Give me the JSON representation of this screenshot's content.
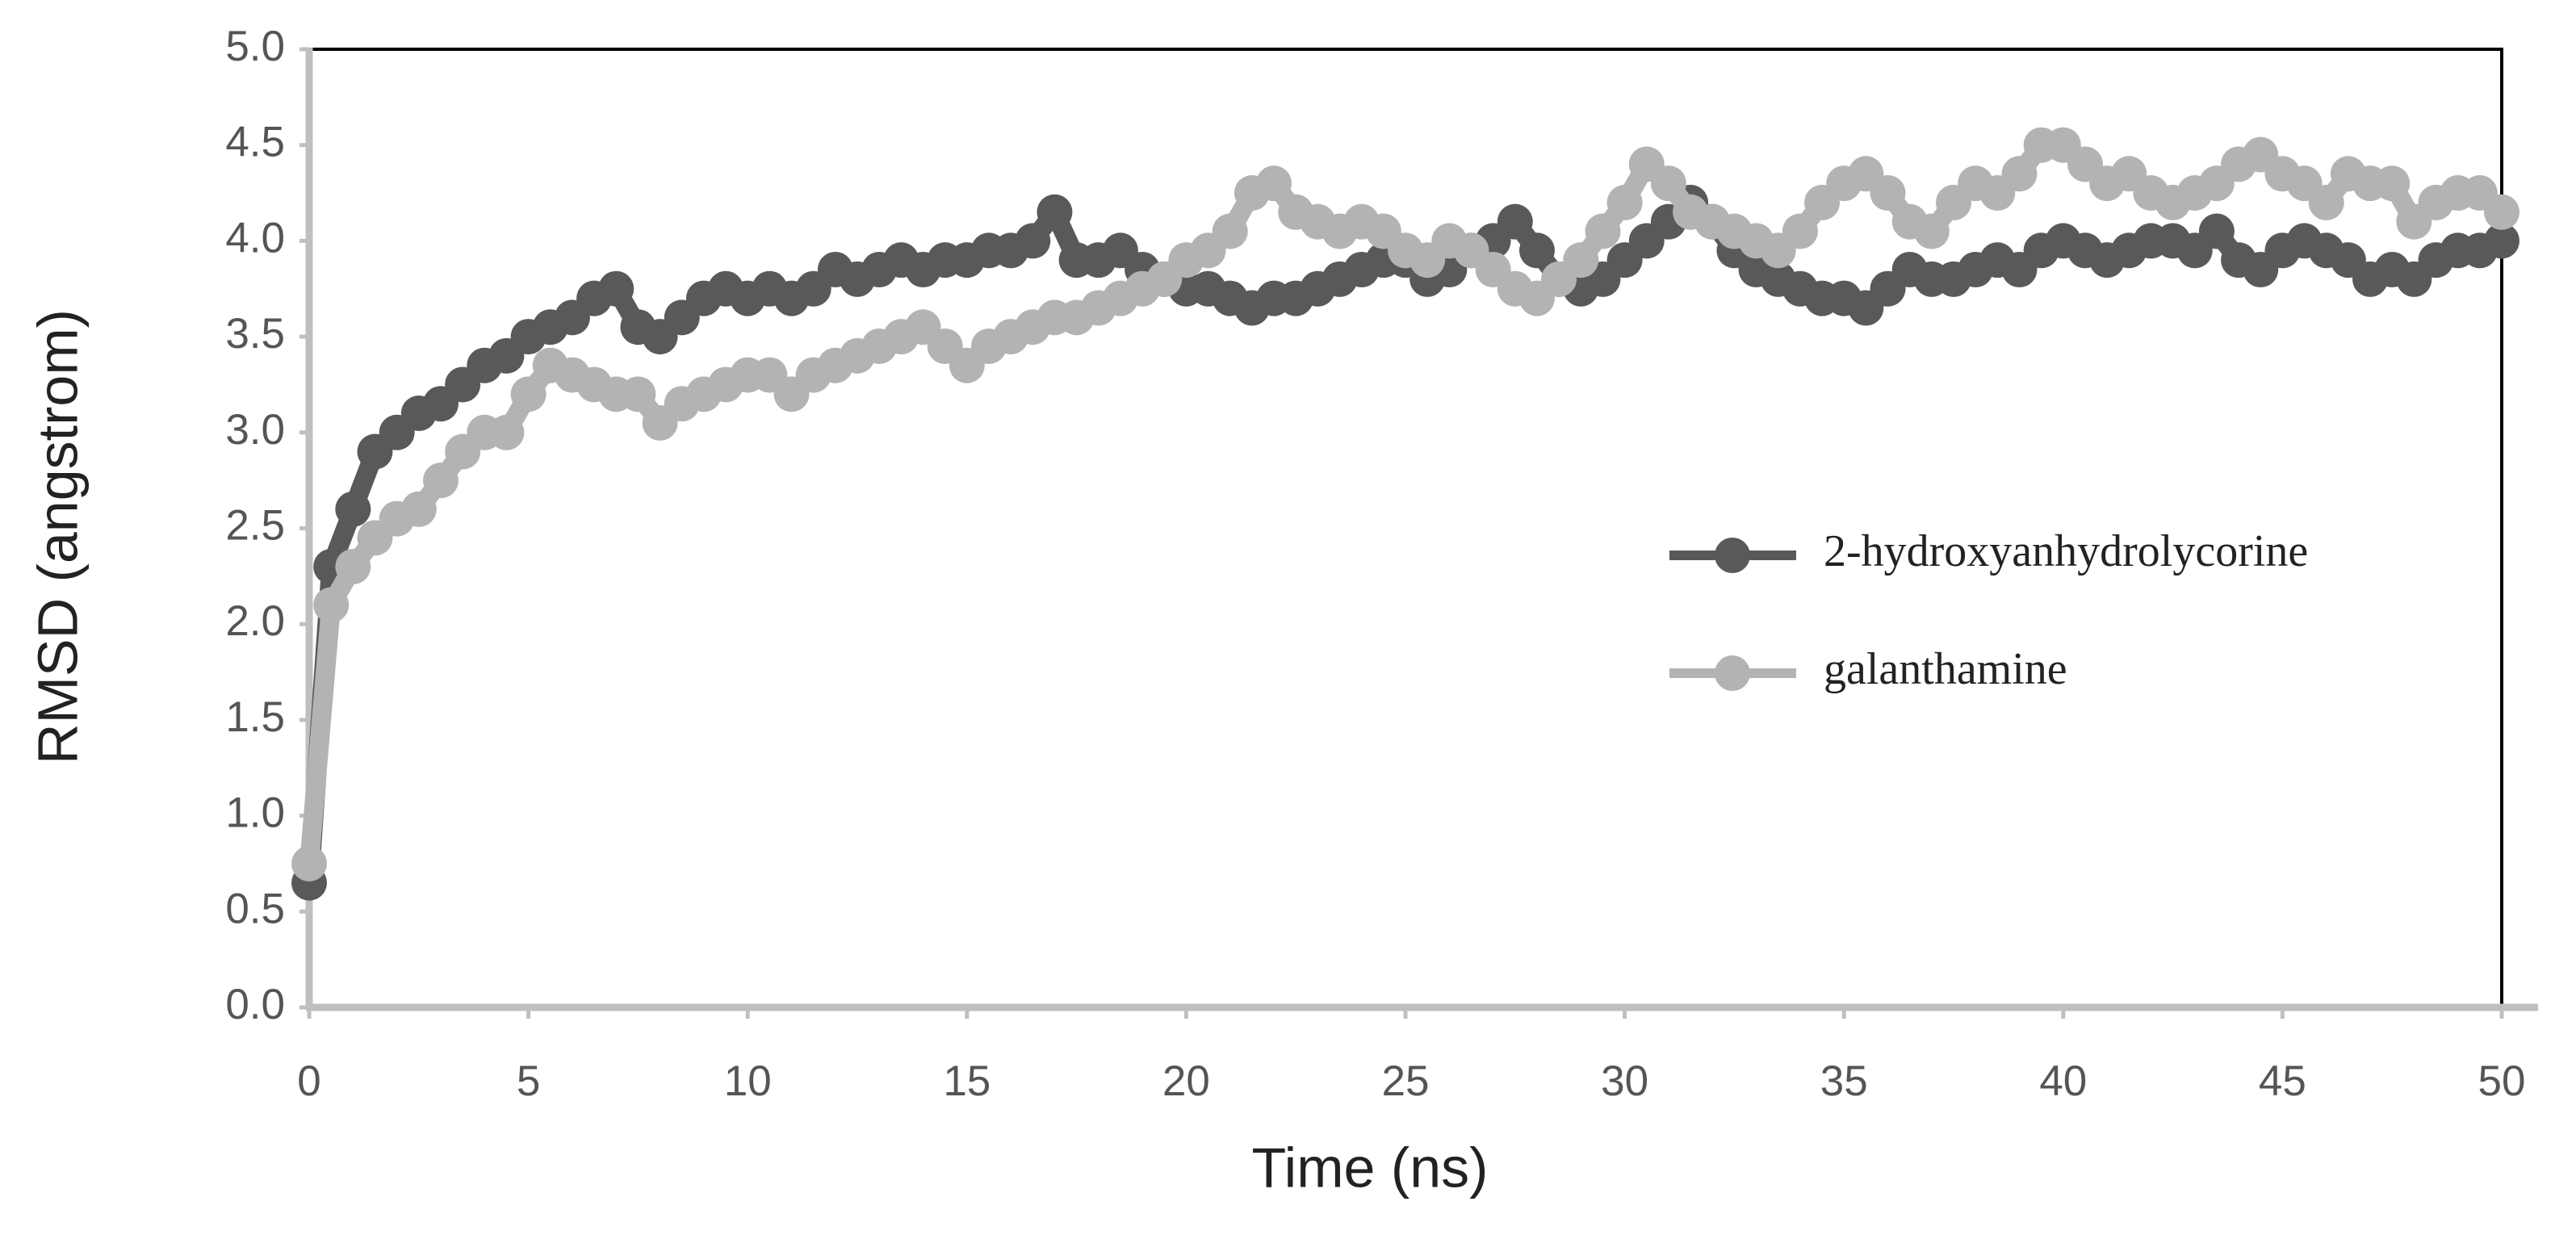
{
  "chart_data": {
    "type": "line",
    "xlabel": "Time (ns)",
    "ylabel": "RMSD (angstrom)",
    "x": [
      0,
      0.5,
      1,
      1.5,
      2,
      2.5,
      3,
      3.5,
      4,
      4.5,
      5,
      5.5,
      6,
      6.5,
      7,
      7.5,
      8,
      8.5,
      9,
      9.5,
      10,
      10.5,
      11,
      11.5,
      12,
      12.5,
      13,
      13.5,
      14,
      14.5,
      15,
      15.5,
      16,
      16.5,
      17,
      17.5,
      18,
      18.5,
      19,
      19.5,
      20,
      20.5,
      21,
      21.5,
      22,
      22.5,
      23,
      23.5,
      24,
      24.5,
      25,
      25.5,
      26,
      26.5,
      27,
      27.5,
      28,
      28.5,
      29,
      29.5,
      30,
      30.5,
      31,
      31.5,
      32,
      32.5,
      33,
      33.5,
      34,
      34.5,
      35,
      35.5,
      36,
      36.5,
      37,
      37.5,
      38,
      38.5,
      39,
      39.5,
      40,
      40.5,
      41,
      41.5,
      42,
      42.5,
      43,
      43.5,
      44,
      44.5,
      45,
      45.5,
      46,
      46.5,
      47,
      47.5,
      48,
      48.5,
      49,
      49.5,
      50
    ],
    "series": [
      {
        "name": "2-hydroxyanhydrolycorine",
        "color": "#595959",
        "values": [
          0.65,
          2.3,
          2.6,
          2.9,
          3.0,
          3.1,
          3.15,
          3.25,
          3.35,
          3.4,
          3.5,
          3.55,
          3.6,
          3.7,
          3.75,
          3.55,
          3.5,
          3.6,
          3.7,
          3.75,
          3.7,
          3.75,
          3.7,
          3.75,
          3.85,
          3.8,
          3.85,
          3.9,
          3.85,
          3.9,
          3.9,
          3.95,
          3.95,
          4.0,
          4.15,
          3.9,
          3.9,
          3.95,
          3.85,
          3.8,
          3.75,
          3.75,
          3.7,
          3.65,
          3.7,
          3.7,
          3.75,
          3.8,
          3.85,
          3.9,
          3.9,
          3.8,
          3.85,
          3.95,
          4.0,
          4.1,
          3.95,
          3.8,
          3.75,
          3.8,
          3.9,
          4.0,
          4.1,
          4.2,
          4.1,
          3.95,
          3.85,
          3.8,
          3.75,
          3.7,
          3.7,
          3.65,
          3.75,
          3.85,
          3.8,
          3.8,
          3.85,
          3.9,
          3.85,
          3.95,
          4.0,
          3.95,
          3.9,
          3.95,
          4.0,
          4.0,
          3.95,
          4.05,
          3.9,
          3.85,
          3.95,
          4.0,
          3.95,
          3.9,
          3.8,
          3.85,
          3.8,
          3.9,
          3.95,
          3.95,
          4.0
        ]
      },
      {
        "name": "galanthamine",
        "color": "#b3b3b3",
        "values": [
          0.75,
          2.1,
          2.3,
          2.45,
          2.55,
          2.6,
          2.75,
          2.9,
          3.0,
          3.0,
          3.2,
          3.35,
          3.3,
          3.25,
          3.2,
          3.2,
          3.05,
          3.15,
          3.2,
          3.25,
          3.3,
          3.3,
          3.2,
          3.3,
          3.35,
          3.4,
          3.45,
          3.5,
          3.55,
          3.45,
          3.35,
          3.45,
          3.5,
          3.55,
          3.6,
          3.6,
          3.65,
          3.7,
          3.75,
          3.8,
          3.9,
          3.95,
          4.05,
          4.25,
          4.3,
          4.15,
          4.1,
          4.05,
          4.1,
          4.05,
          3.95,
          3.9,
          4.0,
          3.95,
          3.85,
          3.75,
          3.7,
          3.8,
          3.9,
          4.05,
          4.2,
          4.4,
          4.3,
          4.15,
          4.1,
          4.05,
          4.0,
          3.95,
          4.05,
          4.2,
          4.3,
          4.35,
          4.25,
          4.1,
          4.05,
          4.2,
          4.3,
          4.25,
          4.35,
          4.5,
          4.5,
          4.4,
          4.3,
          4.35,
          4.25,
          4.2,
          4.25,
          4.3,
          4.4,
          4.45,
          4.35,
          4.3,
          4.2,
          4.35,
          4.3,
          4.3,
          4.1,
          4.2,
          4.25,
          4.25,
          4.15
        ]
      }
    ],
    "xlim": [
      0,
      50
    ],
    "xticks": [
      0,
      5,
      10,
      15,
      20,
      25,
      30,
      35,
      40,
      45,
      50
    ],
    "ylim": [
      0,
      5
    ],
    "yticks": [
      {
        "value": 0,
        "label": "0.0"
      },
      {
        "value": 0.5,
        "label": "0.5"
      },
      {
        "value": 1,
        "label": "1.0"
      },
      {
        "value": 1.5,
        "label": "1.5"
      },
      {
        "value": 2,
        "label": "2.0"
      },
      {
        "value": 2.5,
        "label": "2.5"
      },
      {
        "value": 3,
        "label": "3.0"
      },
      {
        "value": 3.5,
        "label": "3.5"
      },
      {
        "value": 4,
        "label": "4.0"
      },
      {
        "value": 4.5,
        "label": "4.5"
      },
      {
        "value": 5,
        "label": "5.0"
      }
    ],
    "grid": false,
    "markers": true
  }
}
